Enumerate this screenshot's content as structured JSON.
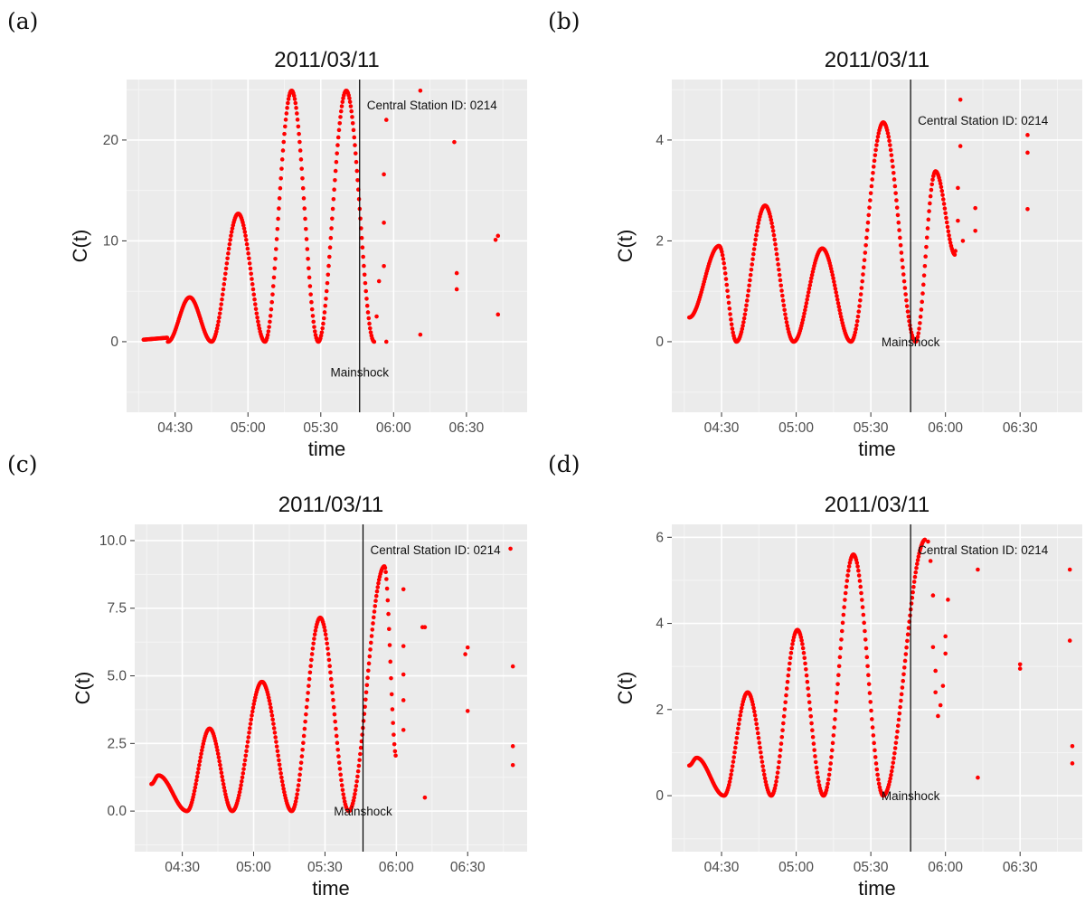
{
  "figure": {
    "marker_color": "#ff0000",
    "panel_bg": "#ebebeb",
    "grid_color": "#ffffff"
  },
  "chart_data": [
    {
      "panel": "(a)",
      "type": "scatter",
      "title": "2011/03/11",
      "xlabel": "time",
      "ylabel": "C(t)",
      "x_ticks": [
        "04:30",
        "05:00",
        "05:30",
        "06:00",
        "06:30"
      ],
      "y_ticks": [
        "0",
        "10",
        "20"
      ],
      "xlim": [
        "04:10",
        "06:55"
      ],
      "ylim": [
        -7,
        26
      ],
      "mainshock": "05:46",
      "annotations": [
        "Central Station ID: 0214",
        "Mainshock"
      ],
      "grid": true,
      "waves": [
        {
          "start": "04:17",
          "end": "04:27",
          "kind": "linear",
          "v0": 0.2,
          "v1": 0.4
        },
        {
          "start": "04:27",
          "end": "04:45",
          "kind": "hump",
          "peak": 4.4
        },
        {
          "start": "04:45",
          "end": "05:07",
          "kind": "hump",
          "peak": 12.7
        },
        {
          "start": "05:07",
          "end": "05:29",
          "kind": "hump",
          "peak": 24.9
        },
        {
          "start": "05:29",
          "end": "05:52",
          "kind": "hump",
          "peak": 24.9
        }
      ],
      "scatter_points": [
        {
          "x": "05:52",
          "y": 0.0
        },
        {
          "x": "05:53",
          "y": 2.5
        },
        {
          "x": "05:54",
          "y": 6.0
        },
        {
          "x": "05:56",
          "y": 7.5
        },
        {
          "x": "05:56",
          "y": 11.8
        },
        {
          "x": "05:56",
          "y": 16.6
        },
        {
          "x": "05:57",
          "y": 22.0
        },
        {
          "x": "05:57",
          "y": 0.0
        },
        {
          "x": "06:11",
          "y": 24.9
        },
        {
          "x": "06:11",
          "y": 0.7
        },
        {
          "x": "06:25",
          "y": 19.8
        },
        {
          "x": "06:26",
          "y": 6.8
        },
        {
          "x": "06:26",
          "y": 5.2
        },
        {
          "x": "06:42",
          "y": 10.1
        },
        {
          "x": "06:43",
          "y": 10.5
        },
        {
          "x": "06:43",
          "y": 2.7
        }
      ]
    },
    {
      "panel": "(b)",
      "type": "scatter",
      "title": "2011/03/11",
      "xlabel": "time",
      "ylabel": "C(t)",
      "x_ticks": [
        "04:30",
        "05:00",
        "05:30",
        "06:00",
        "06:30"
      ],
      "y_ticks": [
        "0",
        "2",
        "4"
      ],
      "xlim": [
        "04:10",
        "06:55"
      ],
      "ylim": [
        -1.4,
        5.2
      ],
      "mainshock": "05:46",
      "annotations": [
        "Central Station ID: 0214",
        "Mainshock"
      ],
      "grid": true,
      "waves": [
        {
          "start": "04:17",
          "end": "04:29",
          "kind": "rise",
          "v0": 0.48,
          "peak": 1.9
        },
        {
          "start": "04:29",
          "end": "04:36",
          "kind": "fall",
          "peak": 1.9
        },
        {
          "start": "04:36",
          "end": "04:59",
          "kind": "hump",
          "peak": 2.7
        },
        {
          "start": "04:59",
          "end": "05:22",
          "kind": "hump",
          "peak": 1.85
        },
        {
          "start": "05:22",
          "end": "05:48",
          "kind": "hump",
          "peak": 4.35
        },
        {
          "start": "05:48",
          "end": "05:56",
          "kind": "rise",
          "v0": 0.0,
          "peak": 3.38
        },
        {
          "start": "05:56",
          "end": "06:04",
          "kind": "fall",
          "peak": 3.38,
          "v1": 1.72
        }
      ],
      "scatter_points": [
        {
          "x": "06:04",
          "y": 1.8
        },
        {
          "x": "06:05",
          "y": 2.4
        },
        {
          "x": "06:05",
          "y": 3.05
        },
        {
          "x": "06:06",
          "y": 3.88
        },
        {
          "x": "06:06",
          "y": 4.8
        },
        {
          "x": "06:07",
          "y": 2.0
        },
        {
          "x": "06:12",
          "y": 2.65
        },
        {
          "x": "06:12",
          "y": 2.2
        },
        {
          "x": "06:33",
          "y": 4.1
        },
        {
          "x": "06:33",
          "y": 3.75
        },
        {
          "x": "06:33",
          "y": 2.63
        }
      ]
    },
    {
      "panel": "(c)",
      "type": "scatter",
      "title": "2011/03/11",
      "xlabel": "time",
      "ylabel": "C(t)",
      "x_ticks": [
        "04:30",
        "05:00",
        "05:30",
        "06:00",
        "06:30"
      ],
      "y_ticks": [
        "0.0",
        "2.5",
        "5.0",
        "7.5",
        "10.0"
      ],
      "xlim": [
        "04:10",
        "06:55"
      ],
      "ylim": [
        -1.5,
        10.6
      ],
      "mainshock": "05:46",
      "annotations": [
        "Central Station ID: 0214",
        "Mainshock"
      ],
      "grid": true,
      "waves": [
        {
          "start": "04:17",
          "end": "04:20",
          "kind": "rise",
          "v0": 1.0,
          "peak": 1.32
        },
        {
          "start": "04:20",
          "end": "04:32",
          "kind": "fall",
          "peak": 1.32
        },
        {
          "start": "04:32",
          "end": "04:51",
          "kind": "hump",
          "peak": 3.05
        },
        {
          "start": "04:51",
          "end": "05:16",
          "kind": "hump",
          "peak": 4.78
        },
        {
          "start": "05:16",
          "end": "05:40",
          "kind": "hump",
          "peak": 7.15
        },
        {
          "start": "05:40",
          "end": "05:55",
          "kind": "rise",
          "v0": 0.0,
          "peak": 9.05
        },
        {
          "start": "05:55",
          "end": "06:00",
          "kind": "fall",
          "peak": 9.05,
          "v1": 2.0
        }
      ],
      "scatter_points": [
        {
          "x": "06:03",
          "y": 8.2
        },
        {
          "x": "06:03",
          "y": 6.1
        },
        {
          "x": "06:03",
          "y": 5.05
        },
        {
          "x": "06:03",
          "y": 4.1
        },
        {
          "x": "06:03",
          "y": 3.0
        },
        {
          "x": "06:11",
          "y": 6.8
        },
        {
          "x": "06:12",
          "y": 6.8
        },
        {
          "x": "06:12",
          "y": 0.5
        },
        {
          "x": "06:29",
          "y": 5.8
        },
        {
          "x": "06:30",
          "y": 6.05
        },
        {
          "x": "06:30",
          "y": 3.7
        },
        {
          "x": "06:48",
          "y": 9.7
        },
        {
          "x": "06:49",
          "y": 5.35
        },
        {
          "x": "06:49",
          "y": 2.4
        },
        {
          "x": "06:49",
          "y": 1.7
        }
      ]
    },
    {
      "panel": "(d)",
      "type": "scatter",
      "title": "2011/03/11",
      "xlabel": "time",
      "ylabel": "C(t)",
      "x_ticks": [
        "04:30",
        "05:00",
        "05:30",
        "06:00",
        "06:30"
      ],
      "y_ticks": [
        "0",
        "2",
        "4",
        "6"
      ],
      "xlim": [
        "04:10",
        "06:55"
      ],
      "ylim": [
        -1.3,
        6.3
      ],
      "mainshock": "05:46",
      "annotations": [
        "Central Station ID: 0214",
        "Mainshock"
      ],
      "grid": true,
      "waves": [
        {
          "start": "04:17",
          "end": "04:20",
          "kind": "rise",
          "v0": 0.7,
          "peak": 0.88
        },
        {
          "start": "04:20",
          "end": "04:31",
          "kind": "fall",
          "peak": 0.88
        },
        {
          "start": "04:31",
          "end": "04:50",
          "kind": "hump",
          "peak": 2.4
        },
        {
          "start": "04:50",
          "end": "05:11",
          "kind": "hump",
          "peak": 3.85
        },
        {
          "start": "05:11",
          "end": "05:35",
          "kind": "hump",
          "peak": 5.6
        },
        {
          "start": "05:35",
          "end": "05:52",
          "kind": "rise",
          "v0": 0.0,
          "peak": 5.95
        }
      ],
      "scatter_points": [
        {
          "x": "05:53",
          "y": 5.9
        },
        {
          "x": "05:54",
          "y": 5.45
        },
        {
          "x": "05:55",
          "y": 4.65
        },
        {
          "x": "05:55",
          "y": 3.45
        },
        {
          "x": "05:56",
          "y": 2.9
        },
        {
          "x": "05:56",
          "y": 2.4
        },
        {
          "x": "05:57",
          "y": 1.85
        },
        {
          "x": "05:58",
          "y": 2.1
        },
        {
          "x": "05:59",
          "y": 2.55
        },
        {
          "x": "06:00",
          "y": 3.3
        },
        {
          "x": "06:00",
          "y": 3.7
        },
        {
          "x": "06:01",
          "y": 4.55
        },
        {
          "x": "06:13",
          "y": 5.25
        },
        {
          "x": "06:13",
          "y": 0.42
        },
        {
          "x": "06:30",
          "y": 3.05
        },
        {
          "x": "06:30",
          "y": 2.95
        },
        {
          "x": "06:50",
          "y": 5.25
        },
        {
          "x": "06:50",
          "y": 3.6
        },
        {
          "x": "06:51",
          "y": 1.15
        },
        {
          "x": "06:51",
          "y": 0.75
        }
      ]
    }
  ]
}
